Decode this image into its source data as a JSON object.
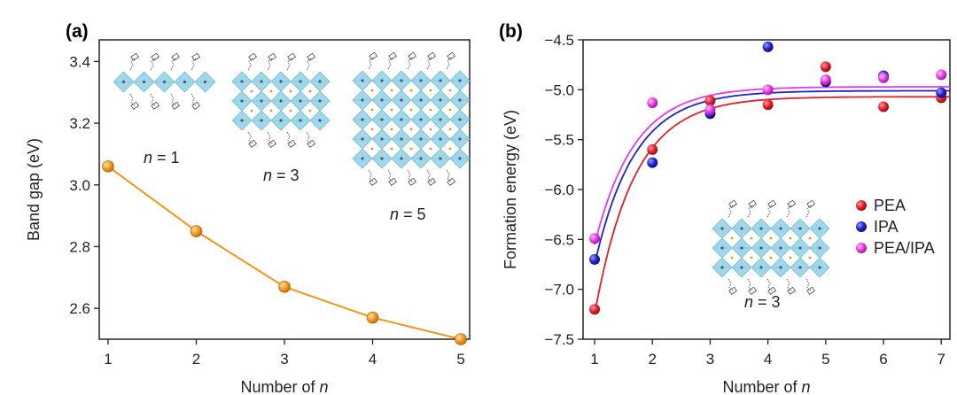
{
  "chart_data": [
    {
      "panel": "(a)",
      "type": "line",
      "x": [
        1,
        2,
        3,
        4,
        5
      ],
      "series": [
        {
          "values": [
            3.06,
            2.85,
            2.67,
            2.57,
            2.5
          ],
          "color": "#f0961c"
        }
      ],
      "xlabel": "Number of n",
      "ylabel": "Band gap (eV)",
      "xlim": [
        0.9,
        5.1
      ],
      "ylim": [
        2.5,
        3.47
      ],
      "xticks": [
        "1",
        "2",
        "3",
        "4",
        "5"
      ],
      "yticks": [
        "2.6",
        "2.8",
        "3.0",
        "3.2",
        "3.4"
      ],
      "ytick_values": [
        2.6,
        2.8,
        3.0,
        3.2,
        3.4
      ],
      "grid": false,
      "annotations": [
        "n = 1",
        "n = 3",
        "n = 5"
      ],
      "inset_icons": [
        "perovskite-structure-n1",
        "perovskite-structure-n3",
        "perovskite-structure-n5"
      ]
    },
    {
      "panel": "(b)",
      "type": "scatter",
      "x": [
        1,
        2,
        3,
        4,
        5,
        6,
        7
      ],
      "series": [
        {
          "name": "PEA",
          "color": "#e0202a",
          "values": [
            -7.2,
            -5.6,
            -5.11,
            -5.15,
            -4.77,
            -5.17,
            -5.08
          ]
        },
        {
          "name": "IPA",
          "color": "#2222cc",
          "values": [
            -6.7,
            -5.73,
            -5.24,
            -4.57,
            -4.92,
            -4.86,
            -5.03
          ]
        },
        {
          "name": "PEA/IPA",
          "color": "#e63ae6",
          "values": [
            -6.49,
            -5.13,
            -5.2,
            -5.0,
            -4.9,
            -4.88,
            -4.85
          ]
        }
      ],
      "fit_lines": [
        {
          "series": "PEA",
          "color": "#e0202a",
          "plateau": -5.07,
          "start": -7.25
        },
        {
          "series": "IPA",
          "color": "#2222cc",
          "plateau": -5.01,
          "start": -6.75
        },
        {
          "series": "PEA/IPA",
          "color": "#e63ae6",
          "plateau": -4.97,
          "start": -6.55
        }
      ],
      "xlabel": "Number of n",
      "ylabel": "Formation energy (eV)",
      "xlim": [
        0.8,
        7.15
      ],
      "ylim": [
        -7.5,
        -4.5
      ],
      "xticks": [
        "1",
        "2",
        "3",
        "4",
        "5",
        "6",
        "7"
      ],
      "yticks": [
        "-7.5",
        "-7.0",
        "-6.5",
        "-6.0",
        "-5.5",
        "-5.0",
        "-4.5"
      ],
      "ytick_values": [
        -7.5,
        -7.0,
        -6.5,
        -6.0,
        -5.5,
        -5.0,
        -4.5
      ],
      "legend": [
        "PEA",
        "IPA",
        "PEA/IPA"
      ],
      "legend_position": "right",
      "grid": false,
      "annotations": [
        "n = 3"
      ],
      "inset_icons": [
        "perovskite-structure-n3"
      ]
    }
  ],
  "labels": {
    "panel_a": "(a)",
    "panel_b": "(b)",
    "xlabel_a": "Number of",
    "xlabel_b": "Number of",
    "xlabel_var": "n",
    "ylabel_a": "Band gap (eV)",
    "ylabel_b": "Formation energy (eV)",
    "ann_n1": "= 1",
    "ann_n3": "= 3",
    "ann_n5": "= 5",
    "ann_b_n3": "= 3",
    "ann_var": "n"
  }
}
